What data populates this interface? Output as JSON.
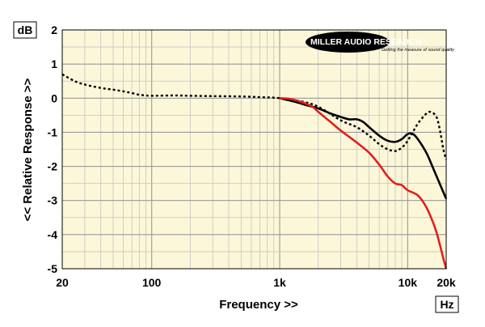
{
  "chart_data": {
    "type": "line",
    "ylabel": "<< Relative Response >>",
    "xlabel": "Frequency >>",
    "y_unit": "dB",
    "x_unit": "Hz",
    "x_scale": "log",
    "xlim": [
      20,
      20000
    ],
    "ylim": [
      -5,
      2
    ],
    "x_ticks": [
      {
        "value": 20,
        "label": "20"
      },
      {
        "value": 100,
        "label": "100"
      },
      {
        "value": 1000,
        "label": "1k"
      },
      {
        "value": 10000,
        "label": "10k"
      },
      {
        "value": 20000,
        "label": "20k"
      }
    ],
    "y_ticks": [
      {
        "value": 2,
        "label": "2"
      },
      {
        "value": 1,
        "label": "1"
      },
      {
        "value": 0,
        "label": "0"
      },
      {
        "value": -1,
        "label": "-1"
      },
      {
        "value": -2,
        "label": "-2"
      },
      {
        "value": -3,
        "label": "-3"
      },
      {
        "value": -4,
        "label": "-4"
      },
      {
        "value": -5,
        "label": "-5"
      }
    ],
    "grid": true,
    "plot_background": "#fbf7d8",
    "series": [
      {
        "color": "#000000",
        "style": "dotted",
        "x": [
          20,
          25,
          30,
          40,
          50,
          60,
          70,
          80,
          90,
          100,
          150,
          200,
          300,
          500,
          700,
          1000,
          1500,
          2000,
          3000,
          4000,
          5000,
          6000,
          7000,
          8000,
          9000,
          10000,
          12000,
          14000,
          15000,
          16000,
          17000,
          18000,
          19000,
          20000
        ],
        "y": [
          0.7,
          0.5,
          0.4,
          0.3,
          0.25,
          0.2,
          0.15,
          0.1,
          0.08,
          0.07,
          0.08,
          0.07,
          0.06,
          0.05,
          0.03,
          0.0,
          -0.1,
          -0.25,
          -0.65,
          -0.85,
          -1.1,
          -1.35,
          -1.5,
          -1.55,
          -1.45,
          -1.25,
          -0.75,
          -0.45,
          -0.4,
          -0.45,
          -0.6,
          -1.0,
          -1.5,
          -1.8
        ]
      },
      {
        "color": "#000000",
        "style": "solid",
        "x": [
          1000,
          1300,
          1600,
          2000,
          2500,
          3000,
          3500,
          4000,
          4500,
          5000,
          6000,
          7000,
          8000,
          9000,
          10000,
          11000,
          12000,
          14000,
          16000,
          18000,
          20000
        ],
        "y": [
          0.0,
          -0.1,
          -0.2,
          -0.3,
          -0.45,
          -0.55,
          -0.62,
          -0.62,
          -0.7,
          -0.85,
          -1.1,
          -1.25,
          -1.28,
          -1.2,
          -1.05,
          -1.05,
          -1.2,
          -1.6,
          -2.1,
          -2.55,
          -2.95
        ]
      },
      {
        "color": "#e02020",
        "style": "solid",
        "x": [
          1000,
          1200,
          1500,
          1800,
          2000,
          2500,
          3000,
          4000,
          5000,
          6000,
          7000,
          8000,
          9000,
          10000,
          12000,
          14000,
          16000,
          17000,
          18000,
          19000,
          20000
        ],
        "y": [
          0.0,
          -0.02,
          -0.12,
          -0.25,
          -0.4,
          -0.7,
          -0.95,
          -1.3,
          -1.6,
          -1.95,
          -2.3,
          -2.5,
          -2.55,
          -2.7,
          -2.85,
          -3.2,
          -3.7,
          -4.0,
          -4.35,
          -4.7,
          -5.0
        ]
      }
    ]
  },
  "logo": {
    "name": "MILLER AUDIO RESEARCH",
    "tagline": "Getting the measure of sound quality"
  }
}
